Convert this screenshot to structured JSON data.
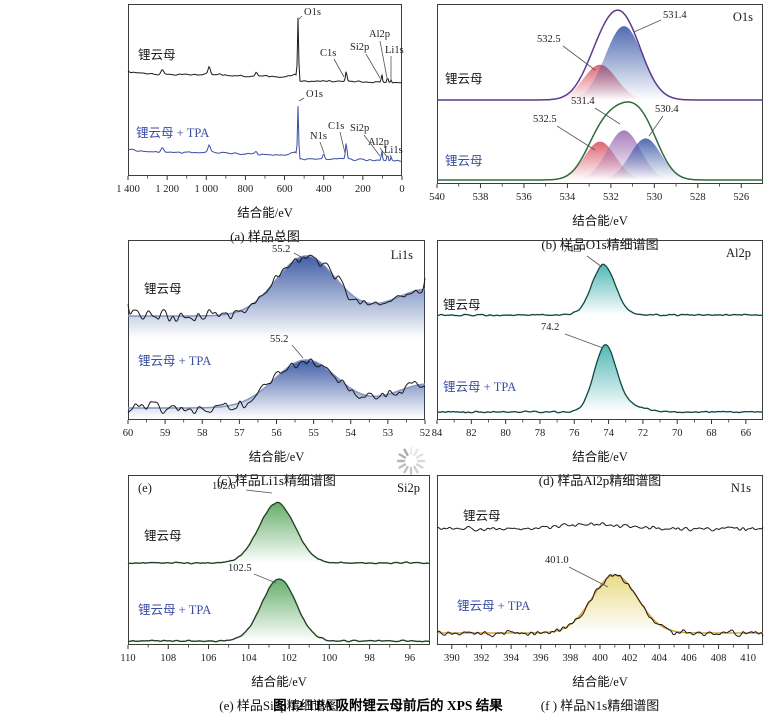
{
  "page": {
    "caption": "图 12  TPA 吸附锂云母前后的 XPS 结果"
  },
  "chart_data": [
    {
      "panel": "a",
      "type": "line",
      "caption": "(a) 样品总图",
      "xlabel": "结合能/eV",
      "x_range": [
        1400,
        0
      ],
      "x_ticks": {
        "values": [
          1400,
          1200,
          1000,
          800,
          600,
          400,
          200,
          0
        ],
        "labels": [
          "1 400",
          "1 200",
          "1 000",
          "800",
          "600",
          "400",
          "200",
          "0"
        ]
      },
      "series": [
        {
          "name": "锂云母",
          "color": "#1a1a1a",
          "peaks": [
            {
              "label": "O1s",
              "center": 531
            },
            {
              "label": "C1s",
              "center": 285
            },
            {
              "label": "Si2p",
              "center": 103
            },
            {
              "label": "Al2p",
              "center": 74
            },
            {
              "label": "Li1s",
              "center": 55
            }
          ]
        },
        {
          "name": "锂云母 + TPA",
          "color": "#3b4ea2",
          "peaks": [
            {
              "label": "O1s",
              "center": 531
            },
            {
              "label": "N1s",
              "center": 400
            },
            {
              "label": "C1s",
              "center": 285
            },
            {
              "label": "Si2p",
              "center": 103
            },
            {
              "label": "Al2p",
              "center": 74
            },
            {
              "label": "Li1s",
              "center": 55
            }
          ]
        }
      ]
    },
    {
      "panel": "b",
      "type": "area",
      "caption": "(b) 样品O1s精细谱图",
      "xlabel": "结合能/eV",
      "region": "O1s",
      "x_range": [
        540,
        525
      ],
      "x_ticks": {
        "values": [
          540,
          538,
          536,
          534,
          532,
          530,
          528,
          526
        ],
        "labels": [
          "540",
          "538",
          "536",
          "534",
          "532",
          "530",
          "528",
          "526"
        ]
      },
      "groups": [
        {
          "name": "锂云母",
          "name_color": "#1a1a1a",
          "envelope_color": "#5b3a8e",
          "components": [
            {
              "label": "532.5",
              "center": 532.5,
              "fwhm": 1.8,
              "height": 0.42,
              "color": "#d94f5c"
            },
            {
              "label": "531.4",
              "center": 531.4,
              "fwhm": 2.0,
              "height": 0.88,
              "color": "#3857a6"
            }
          ]
        },
        {
          "name": "锂云母",
          "name_color": "#3b4ea2",
          "envelope_color": "#2f6b3c",
          "components": [
            {
              "label": "532.5",
              "center": 532.5,
              "fwhm": 1.7,
              "height": 0.48,
              "color": "#d94f5c"
            },
            {
              "label": "531.4",
              "center": 531.4,
              "fwhm": 1.8,
              "height": 0.62,
              "color": "#9b6bb3"
            },
            {
              "label": "530.4",
              "center": 530.4,
              "fwhm": 1.7,
              "height": 0.52,
              "color": "#3857a6"
            }
          ]
        }
      ]
    },
    {
      "panel": "c",
      "type": "area",
      "caption": "(c) 样品Li1s精细谱图",
      "xlabel": "结合能/eV",
      "region": "Li1s",
      "x_range": [
        60,
        52
      ],
      "x_ticks": {
        "values": [
          60,
          59,
          58,
          57,
          56,
          55,
          54,
          53,
          52
        ],
        "labels": [
          "60",
          "59",
          "58",
          "57",
          "56",
          "55",
          "54",
          "53",
          "52"
        ]
      },
      "groups": [
        {
          "name": "锂云母",
          "name_color": "#1a1a1a",
          "envelope_color": "#8494c8",
          "fill": "#31519f",
          "components": [
            {
              "label": "55.2",
              "center": 55.2,
              "fwhm": 1.9,
              "height": 1.0,
              "color": "#31519f"
            }
          ]
        },
        {
          "name": "锂云母 + TPA",
          "name_color": "#3b4ea2",
          "envelope_color": "#8494c8",
          "fill": "#31519f",
          "components": [
            {
              "label": "55.2",
              "center": 55.2,
              "fwhm": 2.0,
              "height": 1.0,
              "color": "#31519f"
            }
          ]
        }
      ]
    },
    {
      "panel": "d",
      "type": "area",
      "caption": "(d) 样品Al2p精细谱图",
      "xlabel": "结合能/eV",
      "region": "Al2p",
      "x_range": [
        84,
        65
      ],
      "x_ticks": {
        "values": [
          84,
          82,
          80,
          78,
          76,
          74,
          72,
          70,
          68,
          66
        ],
        "labels": [
          "84",
          "82",
          "80",
          "78",
          "76",
          "74",
          "72",
          "70",
          "68",
          "66"
        ]
      },
      "groups": [
        {
          "name": "锂云母",
          "name_color": "#1a1a1a",
          "envelope_color": "#2e8f8b",
          "fill": "#46b2ae",
          "components": [
            {
              "label": "74.3",
              "center": 74.3,
              "fwhm": 1.6,
              "height": 1.0,
              "color": "#46b2ae"
            }
          ]
        },
        {
          "name": "锂云母 + TPA",
          "name_color": "#3b4ea2",
          "envelope_color": "#2e8f8b",
          "fill": "#46b2ae",
          "components": [
            {
              "label": "74.2",
              "center": 74.2,
              "fwhm": 1.5,
              "height": 1.0,
              "color": "#46b2ae"
            }
          ]
        }
      ]
    },
    {
      "panel": "e",
      "type": "area",
      "caption": "(e) 样品Si2p精细谱图",
      "xlabel": "结合能/eV",
      "region": "Si2p",
      "corner_label": "(e)",
      "x_range": [
        110,
        95
      ],
      "x_ticks": {
        "values": [
          110,
          108,
          106,
          104,
          102,
          100,
          98,
          96
        ],
        "labels": [
          "110",
          "108",
          "106",
          "104",
          "102",
          "100",
          "98",
          "96"
        ]
      },
      "groups": [
        {
          "name": "锂云母",
          "name_color": "#1a1a1a",
          "envelope_color": "#3f7a43",
          "fill": "#5aa75f",
          "components": [
            {
              "label": "102.6",
              "center": 102.6,
              "fwhm": 2.1,
              "height": 1.0,
              "color": "#5aa75f"
            }
          ]
        },
        {
          "name": "锂云母 + TPA",
          "name_color": "#3b4ea2",
          "envelope_color": "#3f7a43",
          "fill": "#5aa75f",
          "components": [
            {
              "label": "102.5",
              "center": 102.5,
              "fwhm": 2.0,
              "height": 1.0,
              "color": "#5aa75f"
            }
          ]
        }
      ]
    },
    {
      "panel": "f",
      "type": "area",
      "caption": "(f ) 样品N1s精细谱图",
      "xlabel": "结合能/eV",
      "region": "N1s",
      "x_range": [
        389,
        411
      ],
      "x_ticks": {
        "values": [
          390,
          392,
          394,
          396,
          398,
          400,
          402,
          404,
          406,
          408,
          410
        ],
        "labels": [
          "390",
          "392",
          "394",
          "396",
          "398",
          "400",
          "402",
          "404",
          "406",
          "408",
          "410"
        ]
      },
      "groups": [
        {
          "name": "锂云母",
          "name_color": "#1a1a1a",
          "envelope_color": null,
          "components": []
        },
        {
          "name": "锂云母 + TPA",
          "name_color": "#3b4ea2",
          "envelope_color": "#dd9f3c",
          "fill": "#e7d87c",
          "components": [
            {
              "label": "401.0",
              "center": 401.0,
              "fwhm": 3.6,
              "height": 1.0,
              "color": "#e7d87c"
            }
          ]
        }
      ]
    }
  ]
}
